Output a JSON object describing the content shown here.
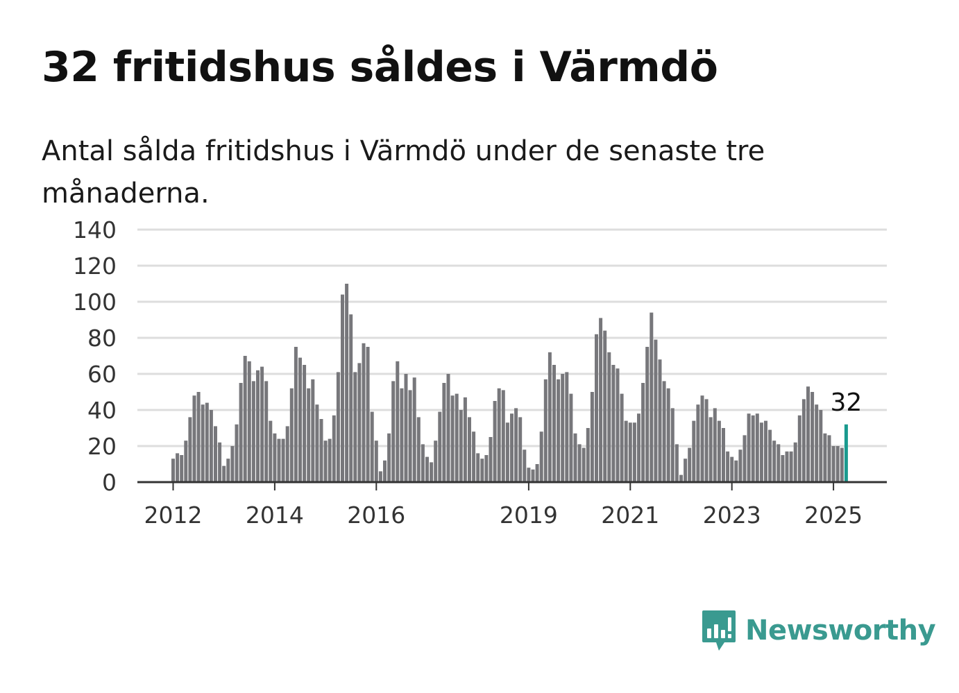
{
  "title": "32 fritidshus såldes i Värmdö",
  "subtitle": "Antal sålda fritidshus i Värmdö under de senaste tre månaderna.",
  "brand": {
    "name": "Newsworthy",
    "color": "#3a9a90",
    "icon": "newsworthy-logo-icon"
  },
  "colors": {
    "bar": "#77777b",
    "highlight": "#1a9a8e",
    "grid": "#dddddd",
    "axis": "#333333"
  },
  "chart_data": {
    "type": "bar",
    "title": "32 fritidshus såldes i Värmdö",
    "x_ticks": [
      "2012",
      "2014",
      "2016",
      "2019",
      "2021",
      "2023",
      "2025"
    ],
    "y_ticks": [
      "0",
      "20",
      "40",
      "60",
      "80",
      "100",
      "120",
      "140"
    ],
    "ylim": [
      0,
      140
    ],
    "grid": true,
    "highlight_label": "32",
    "values": [
      13,
      16,
      15,
      23,
      36,
      48,
      50,
      43,
      44,
      40,
      31,
      22,
      9,
      13,
      20,
      32,
      55,
      70,
      67,
      56,
      62,
      64,
      56,
      34,
      27,
      24,
      24,
      31,
      52,
      75,
      69,
      65,
      52,
      57,
      43,
      35,
      23,
      24,
      37,
      61,
      104,
      110,
      93,
      61,
      66,
      77,
      75,
      39,
      23,
      6,
      12,
      27,
      56,
      67,
      52,
      60,
      51,
      58,
      36,
      21,
      14,
      11,
      23,
      39,
      55,
      60,
      48,
      49,
      40,
      47,
      36,
      28,
      16,
      13,
      15,
      25,
      45,
      52,
      51,
      33,
      38,
      41,
      36,
      18,
      8,
      7,
      10,
      28,
      57,
      72,
      65,
      57,
      60,
      61,
      49,
      27,
      21,
      19,
      30,
      50,
      82,
      91,
      84,
      72,
      65,
      63,
      49,
      34,
      33,
      33,
      38,
      55,
      75,
      94,
      79,
      68,
      56,
      52,
      41,
      21,
      4,
      13,
      19,
      34,
      43,
      48,
      46,
      36,
      41,
      34,
      30,
      17,
      14,
      12,
      18,
      26,
      38,
      37,
      38,
      33,
      34,
      29,
      23,
      21,
      15,
      17,
      17,
      22,
      37,
      46,
      53,
      50,
      43,
      40,
      27,
      26,
      20,
      20,
      19,
      32
    ]
  }
}
